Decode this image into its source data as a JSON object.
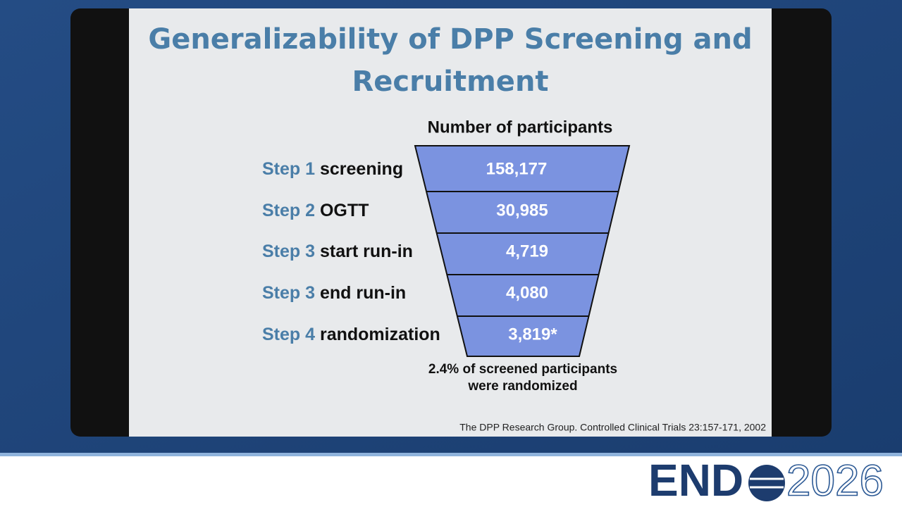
{
  "slide": {
    "title_lines": [
      "Generalizability of DPP Screening and",
      "Recruitment"
    ],
    "funnel_header": "Number of participants",
    "steps": [
      {
        "step": "Step 1",
        "label": "screening",
        "value": "158,177"
      },
      {
        "step": "Step 2",
        "label": "OGTT",
        "value": "30,985"
      },
      {
        "step": "Step 3",
        "label": "start run-in",
        "value": "4,719"
      },
      {
        "step": "Step 3",
        "label": "end run-in",
        "value": "4,080"
      },
      {
        "step": "Step 4",
        "label": "randomization",
        "value": "3,819*"
      }
    ],
    "footnote_lines": [
      "2.4% of screened participants",
      "were randomized"
    ],
    "citation": "The DPP Research Group. Controlled Clinical Trials 23:157-171, 2002"
  },
  "logo": {
    "left": "END",
    "right": "2026"
  }
}
